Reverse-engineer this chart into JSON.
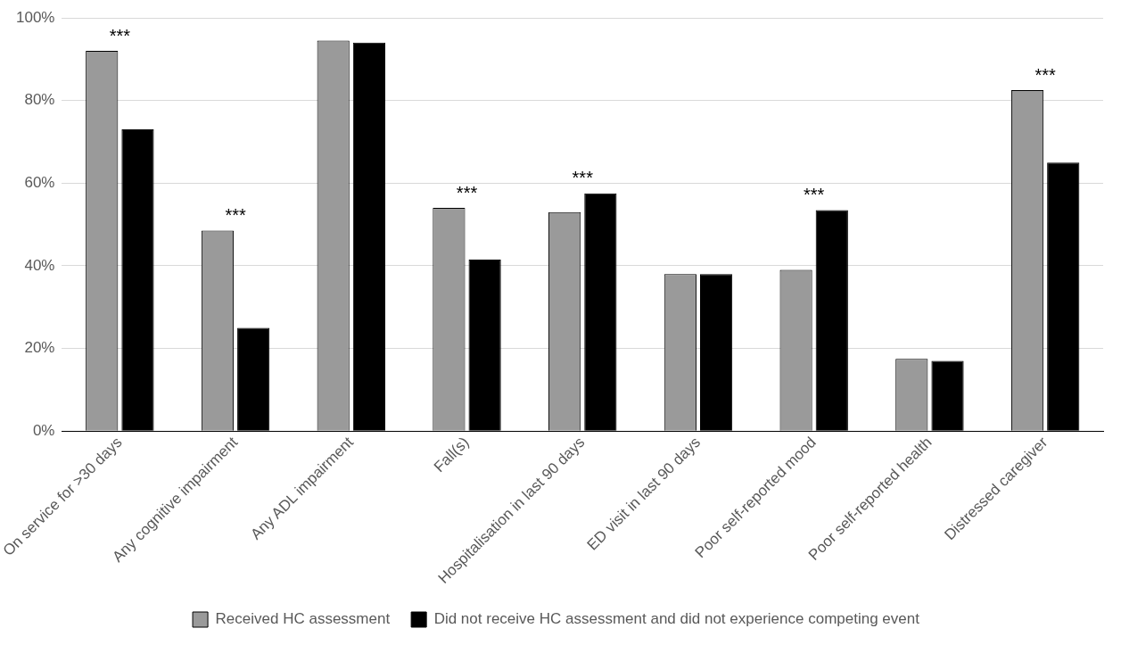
{
  "chart_data": {
    "type": "bar",
    "categories": [
      "On service for >30 days",
      "Any cognitive impairment",
      "Any ADL impairment",
      "Fall(s)",
      "Hospitalisation in last 90 days",
      "ED visit in last 90 days",
      "Poor self-reported mood",
      "Poor self-reported health",
      "Distressed caregiver"
    ],
    "series": [
      {
        "name": "Received HC assessment",
        "color": "#9a9a9a",
        "values": [
          92,
          48.5,
          94.5,
          54,
          53,
          38,
          39,
          17.5,
          82.5
        ]
      },
      {
        "name": "Did not receive HC assessment and did not experience competing event",
        "color": "#000000",
        "values": [
          73,
          25,
          94,
          41.5,
          57.5,
          38,
          53.5,
          17,
          65
        ]
      }
    ],
    "ylim": [
      0,
      100
    ],
    "yticks": [
      {
        "value": 0,
        "label": "0%"
      },
      {
        "value": 20,
        "label": "20%"
      },
      {
        "value": 40,
        "label": "40%"
      },
      {
        "value": 60,
        "label": "60%"
      },
      {
        "value": 80,
        "label": "80%"
      },
      {
        "value": 100,
        "label": "100%"
      }
    ],
    "grid": "y",
    "legend": "bottom",
    "annotations": [
      {
        "text": "***",
        "x": "On service for >30 days",
        "y": 92
      },
      {
        "text": "***",
        "x": "Any cognitive impairment",
        "y": 48.5
      },
      {
        "text": "***",
        "x": "Fall(s)",
        "y": 54
      },
      {
        "text": "***",
        "x": "Hospitalisation in last 90 days",
        "y": 57.5
      },
      {
        "text": "***",
        "x": "Poor self-reported mood",
        "y": 53.5
      },
      {
        "text": "***",
        "x": "Distressed caregiver",
        "y": 82.5
      }
    ]
  }
}
